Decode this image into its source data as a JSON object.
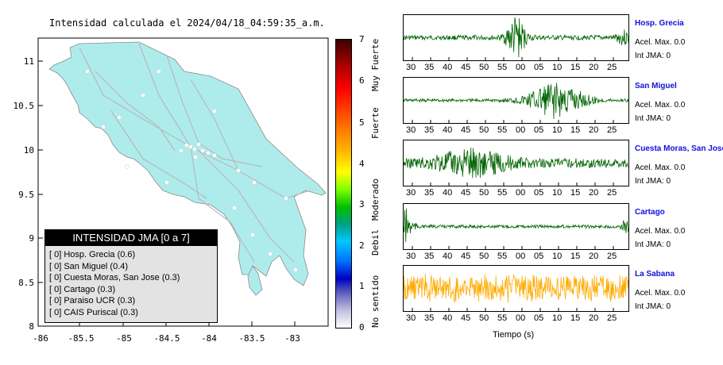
{
  "map": {
    "title": "Intensidad calculada el 2024/04/18_04:59:35_a.m.",
    "y_ticks": [
      "11",
      "10.5",
      "10",
      "9.5",
      "9",
      "8.5",
      "8"
    ],
    "x_ticks": [
      "-86",
      "-85.5",
      "-85",
      "-84.5",
      "-84",
      "-83.5",
      "-83"
    ]
  },
  "legend": {
    "title": "INTENSIDAD JMA [0 a 7]",
    "items": [
      "[ 0]  Hosp. Grecia (0.6)",
      "[ 0]  San Miguel (0.4)",
      "[ 0]  Cuesta Moras, San Jose (0.3)",
      "[ 0]  Cartago (0.3)",
      "[ 0]  Paraiso UCR (0.3)",
      "[ 0]  CAIS Puriscal (0.3)"
    ]
  },
  "scale": {
    "numbers": [
      "7",
      "6",
      "5",
      "4",
      "3",
      "2",
      "1",
      "0"
    ],
    "labels": [
      "Muy Fuerte",
      "Fuerte",
      "Moderado",
      "Debil",
      "No sentido"
    ]
  },
  "stations": [
    {
      "name": "Hosp. Grecia",
      "accel": "Acel. Max. 0.0",
      "int": "Int JMA: 0",
      "color": "#006400",
      "ticks": [
        "30",
        "35",
        "40",
        "45",
        "50",
        "55",
        "00",
        "05",
        "10",
        "15",
        "20",
        "25"
      ]
    },
    {
      "name": "San Miguel",
      "accel": "Acel. Max. 0.0",
      "int": "Int JMA: 0",
      "color": "#006400",
      "ticks": [
        "30",
        "35",
        "40",
        "45",
        "50",
        "55",
        "00",
        "05",
        "10",
        "15",
        "20",
        "25"
      ]
    },
    {
      "name": "Cuesta Moras, San Jose",
      "accel": "Acel. Max. 0.0",
      "int": "Int JMA: 0",
      "color": "#006400",
      "ticks": [
        "30",
        "35",
        "40",
        "45",
        "50",
        "55",
        "00",
        "05",
        "10",
        "15",
        "20",
        "25"
      ]
    },
    {
      "name": "Cartago",
      "accel": "Acel. Max. 0.0",
      "int": "Int JMA: 0",
      "color": "#006400",
      "ticks": [
        "30",
        "35",
        "40",
        "45",
        "50",
        "55",
        "00",
        "05",
        "10",
        "15",
        "20",
        "25"
      ]
    },
    {
      "name": "La Sabana",
      "accel": "Acel. Max. 0.0",
      "int": "Int JMA: 0",
      "color": "#ffaa00",
      "ticks": [
        "30",
        "35",
        "40",
        "45",
        "50",
        "55",
        "00",
        "05",
        "10",
        "15",
        "20",
        "25"
      ]
    }
  ],
  "x_axis_label": "Tiempo (s)"
}
